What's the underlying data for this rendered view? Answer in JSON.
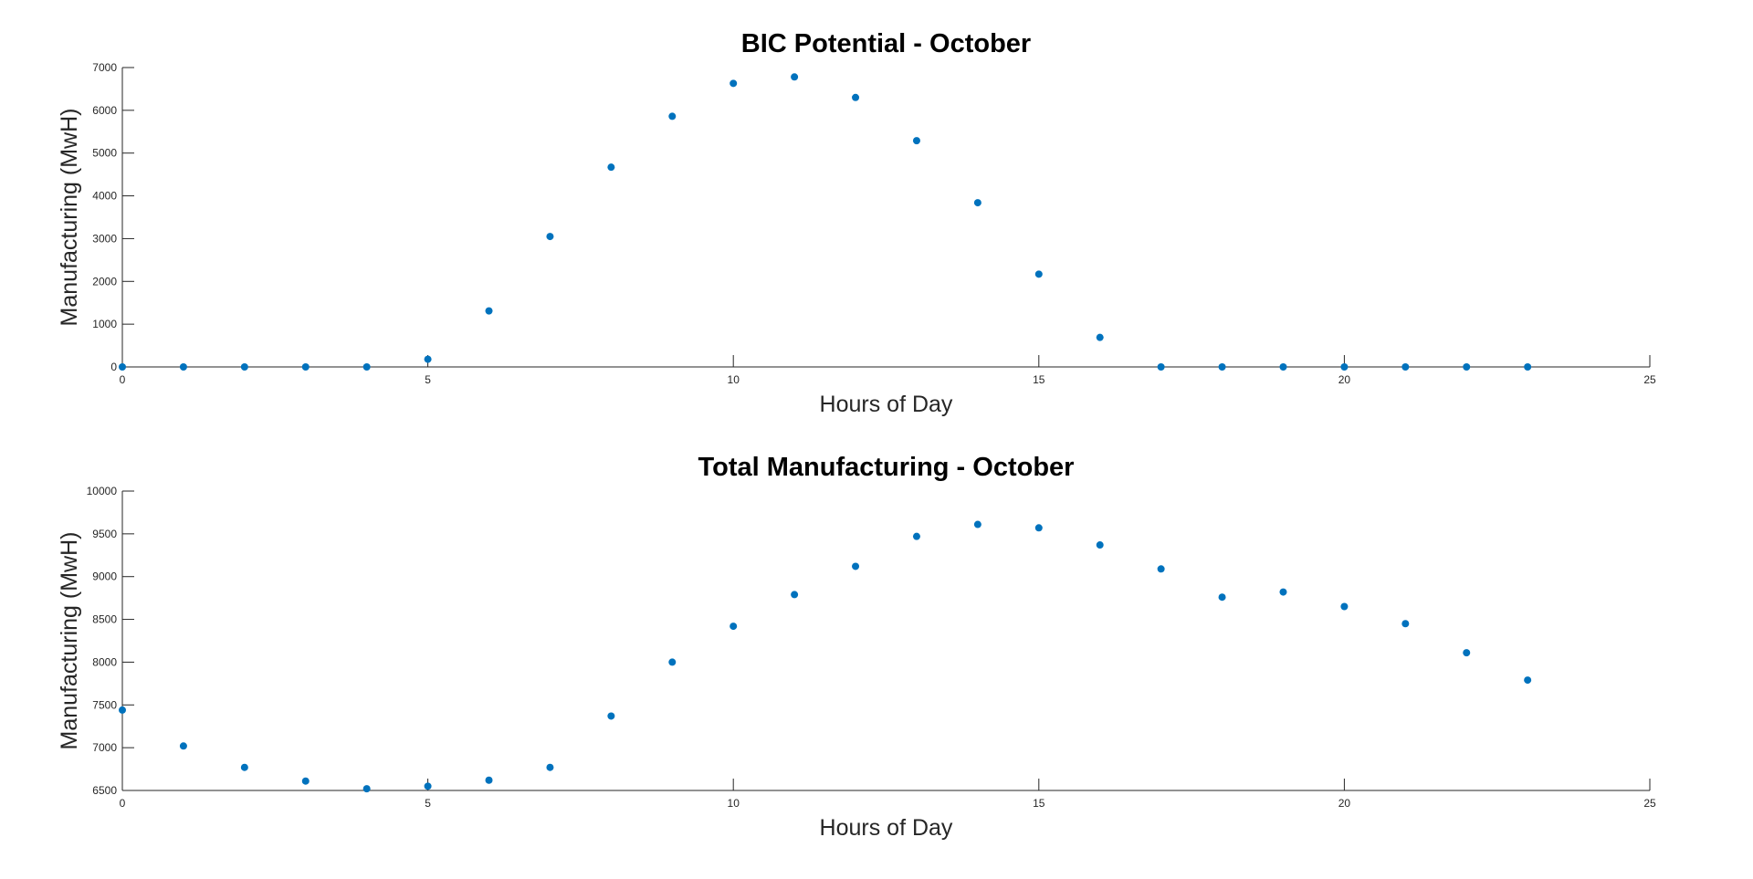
{
  "chart_data": [
    {
      "type": "scatter",
      "title": "BIC Potential - October",
      "xlabel": "Hours of Day",
      "ylabel": "Manufacturing (MwH)",
      "xlim": [
        0,
        25
      ],
      "ylim": [
        0,
        7000
      ],
      "xticks": [
        0,
        5,
        10,
        15,
        20,
        25
      ],
      "yticks": [
        0,
        1000,
        2000,
        3000,
        4000,
        5000,
        6000,
        7000
      ],
      "grid": false,
      "color": "#0072bd",
      "series": [
        {
          "x": [
            0,
            1,
            2,
            3,
            4,
            5,
            6,
            7,
            8,
            9,
            10,
            11,
            12,
            13,
            14,
            15,
            16,
            17,
            18,
            19,
            20,
            21,
            22,
            23
          ],
          "y": [
            0,
            0,
            0,
            0,
            0,
            180,
            1310,
            3050,
            4670,
            5860,
            6630,
            6780,
            6300,
            5290,
            3840,
            2170,
            690,
            0,
            0,
            0,
            0,
            0,
            0,
            0
          ]
        }
      ]
    },
    {
      "type": "scatter",
      "title": "Total Manufacturing - October",
      "xlabel": "Hours of Day",
      "ylabel": "Manufacturing (MwH)",
      "xlim": [
        0,
        25
      ],
      "ylim": [
        6500,
        10000
      ],
      "xticks": [
        0,
        5,
        10,
        15,
        20,
        25
      ],
      "yticks": [
        6500,
        7000,
        7500,
        8000,
        8500,
        9000,
        9500,
        10000
      ],
      "grid": false,
      "color": "#0072bd",
      "series": [
        {
          "x": [
            0,
            1,
            2,
            3,
            4,
            5,
            6,
            7,
            8,
            9,
            10,
            11,
            12,
            13,
            14,
            15,
            16,
            17,
            18,
            19,
            20,
            21,
            22,
            23
          ],
          "y": [
            7440,
            7020,
            6770,
            6610,
            6520,
            6550,
            6620,
            6770,
            7370,
            8000,
            8420,
            8790,
            9120,
            9470,
            9610,
            9570,
            9370,
            9090,
            8760,
            8820,
            8650,
            8450,
            8110,
            7790
          ]
        }
      ]
    }
  ]
}
